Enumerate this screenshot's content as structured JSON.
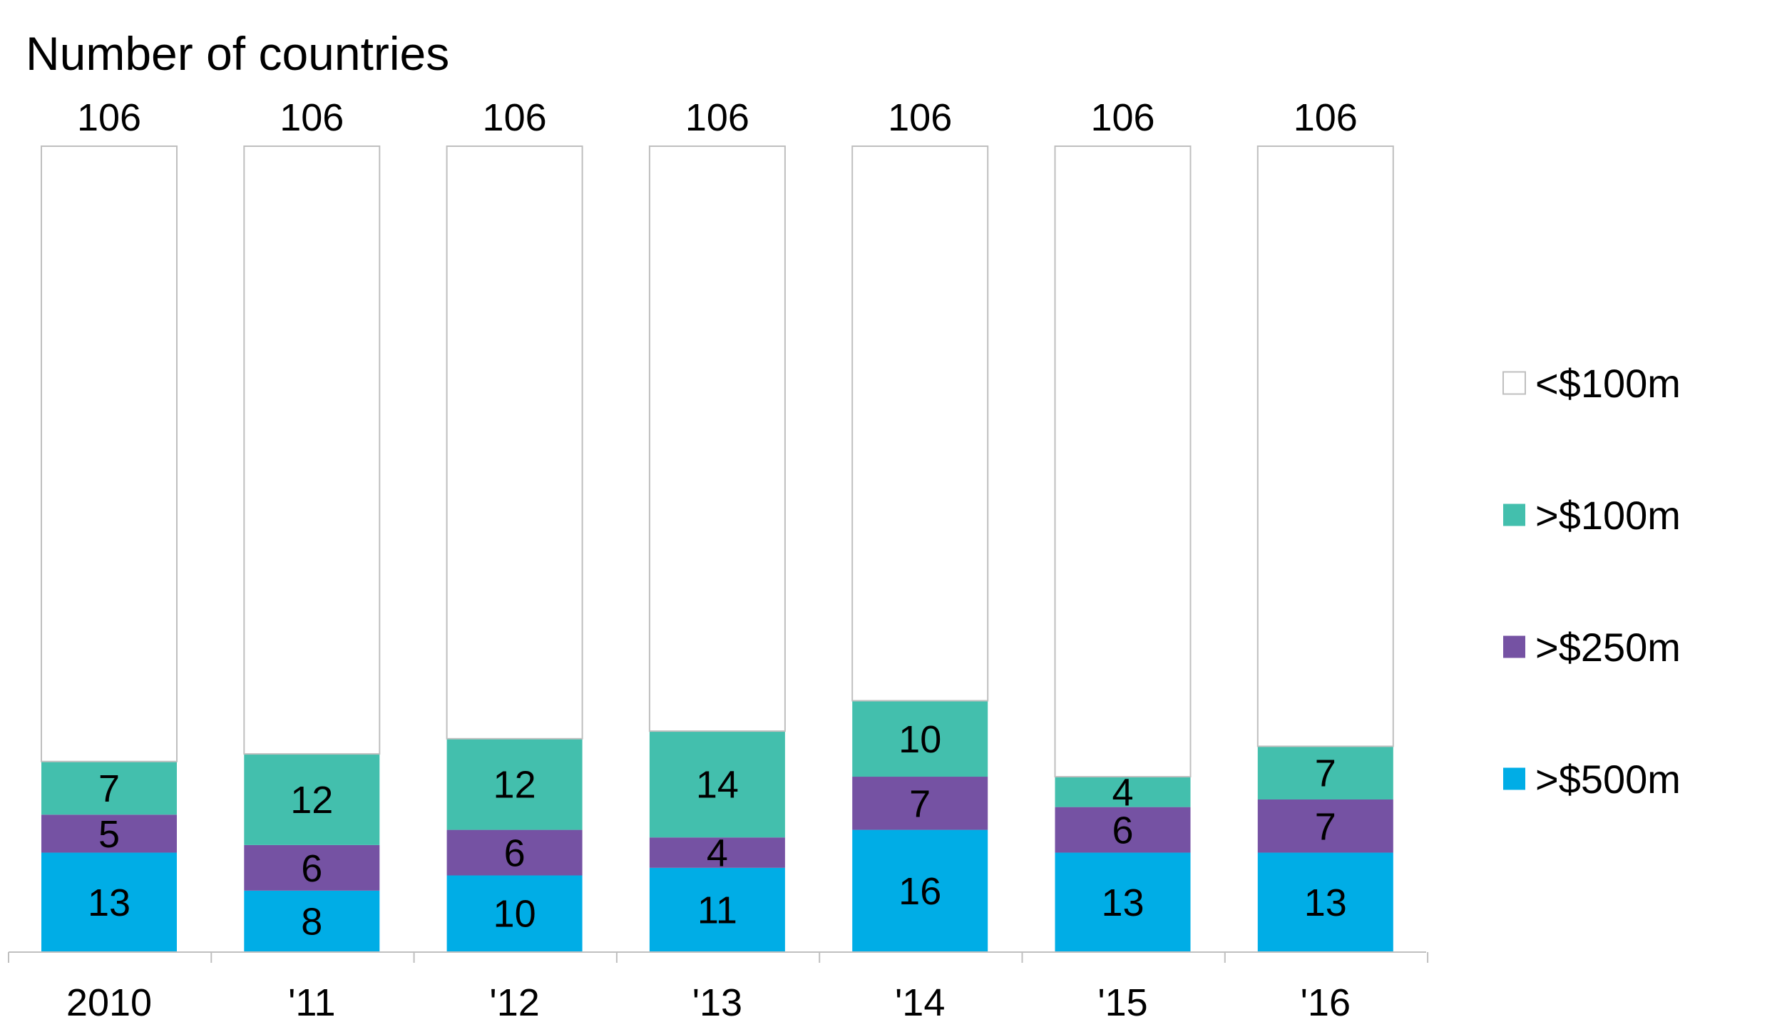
{
  "chart_data": {
    "type": "bar",
    "stacked": true,
    "title": "Number of countries",
    "xlabel": "",
    "ylabel": "",
    "categories": [
      "2010",
      "'11",
      "'12",
      "'13",
      "'14",
      "'15",
      "'16"
    ],
    "totals": [
      106,
      106,
      106,
      106,
      106,
      106,
      106
    ],
    "totals_labels": [
      "106",
      "106",
      "106",
      "106",
      "106",
      "106",
      "106"
    ],
    "ylim": [
      0,
      106
    ],
    "grid": false,
    "legend_position": "right",
    "series": [
      {
        "name": ">$500m",
        "color": "#00ADE6",
        "values": [
          13,
          8,
          10,
          11,
          16,
          13,
          13
        ]
      },
      {
        "name": ">$250m",
        "color": "#7552A3",
        "values": [
          5,
          6,
          6,
          4,
          7,
          6,
          7
        ]
      },
      {
        "name": ">$100m",
        "color": "#43BFAD",
        "values": [
          7,
          12,
          12,
          14,
          10,
          4,
          7
        ]
      },
      {
        "name": "<$100m",
        "color": "#FFFFFF",
        "values": [
          81,
          80,
          78,
          77,
          73,
          83,
          79
        ]
      }
    ],
    "series_labels": [
      [
        "13",
        "8",
        "10",
        "11",
        "16",
        "13",
        "13"
      ],
      [
        "5",
        "6",
        "6",
        "4",
        "7",
        "6",
        "7"
      ],
      [
        "7",
        "12",
        "12",
        "14",
        "10",
        "4",
        "7"
      ],
      [
        "",
        "",
        "",
        "",
        "",
        "",
        ""
      ]
    ],
    "legend_order": [
      "<$100m",
      ">$100m",
      ">$250m",
      ">$500m"
    ]
  }
}
